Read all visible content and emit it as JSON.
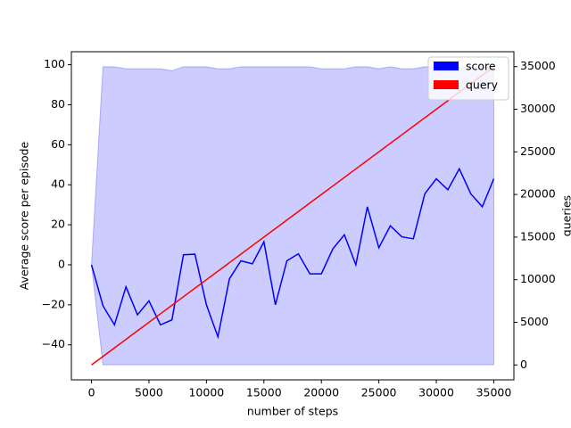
{
  "chart_data": {
    "type": "line",
    "xlabel": "number of steps",
    "ylabel": "Average score per episode",
    "y2label": "queries",
    "x": [
      0,
      1000,
      2000,
      3000,
      4000,
      5000,
      6000,
      7000,
      8000,
      9000,
      10000,
      11000,
      12000,
      13000,
      14000,
      15000,
      16000,
      17000,
      18000,
      19000,
      20000,
      21000,
      22000,
      23000,
      24000,
      25000,
      26000,
      27000,
      28000,
      29000,
      30000,
      31000,
      32000,
      33000,
      34000,
      35000
    ],
    "series": [
      {
        "name": "score",
        "color": "#0000ff",
        "axis": "y",
        "values": [
          0,
          -20.5,
          -30,
          -11,
          -25,
          -18,
          -30,
          -27.5,
          5,
          5.3,
          -20,
          -36,
          -7,
          2,
          0.5,
          11.5,
          -20,
          2,
          5.5,
          -4.5,
          -4.5,
          8,
          15,
          0,
          29,
          8.5,
          19.5,
          14,
          13,
          35.5,
          43,
          37.5,
          48,
          35.5,
          29,
          43
        ],
        "band_upper": [
          0,
          99,
          99,
          98,
          98,
          98,
          98,
          97,
          99,
          99,
          99,
          98,
          98,
          99,
          99,
          99,
          99,
          99,
          99,
          99,
          98,
          98,
          98,
          99,
          99,
          98,
          99,
          98,
          98,
          99,
          99,
          99,
          99,
          99,
          99,
          99
        ],
        "band_lower": [
          0,
          -50,
          -50,
          -50,
          -50,
          -50,
          -50,
          -50,
          -50,
          -50,
          -50,
          -50,
          -50,
          -50,
          -50,
          -50,
          -50,
          -50,
          -50,
          -50,
          -50,
          -50,
          -50,
          -50,
          -50,
          -50,
          -50,
          -50,
          -50,
          -50,
          -50,
          -50,
          -50,
          -50,
          -50,
          -50
        ]
      },
      {
        "name": "query",
        "color": "#ff0000",
        "axis": "y2",
        "values": [
          0,
          1000,
          2000,
          3000,
          4000,
          5000,
          6000,
          7000,
          8000,
          9000,
          10000,
          11000,
          12000,
          13000,
          14000,
          15000,
          16000,
          17000,
          18000,
          19000,
          20000,
          21000,
          22000,
          23000,
          24000,
          25000,
          26000,
          27000,
          28000,
          29000,
          30000,
          31000,
          32000,
          33000,
          34000,
          35000
        ]
      }
    ],
    "band_color": "#ccccff",
    "xlim": [
      -1750,
      36750
    ],
    "xticks": [
      0,
      5000,
      10000,
      15000,
      20000,
      25000,
      30000,
      35000
    ],
    "ylim": [
      -57.5,
      106.5
    ],
    "yticks": [
      {
        "value": -40,
        "label": "−40"
      },
      {
        "value": -20,
        "label": "−20"
      },
      0,
      20,
      40,
      60,
      80,
      100
    ],
    "y2lim": [
      -1750,
      36750
    ],
    "y2ticks": [
      0,
      5000,
      10000,
      15000,
      20000,
      25000,
      30000,
      35000
    ],
    "legend": "upper right"
  }
}
